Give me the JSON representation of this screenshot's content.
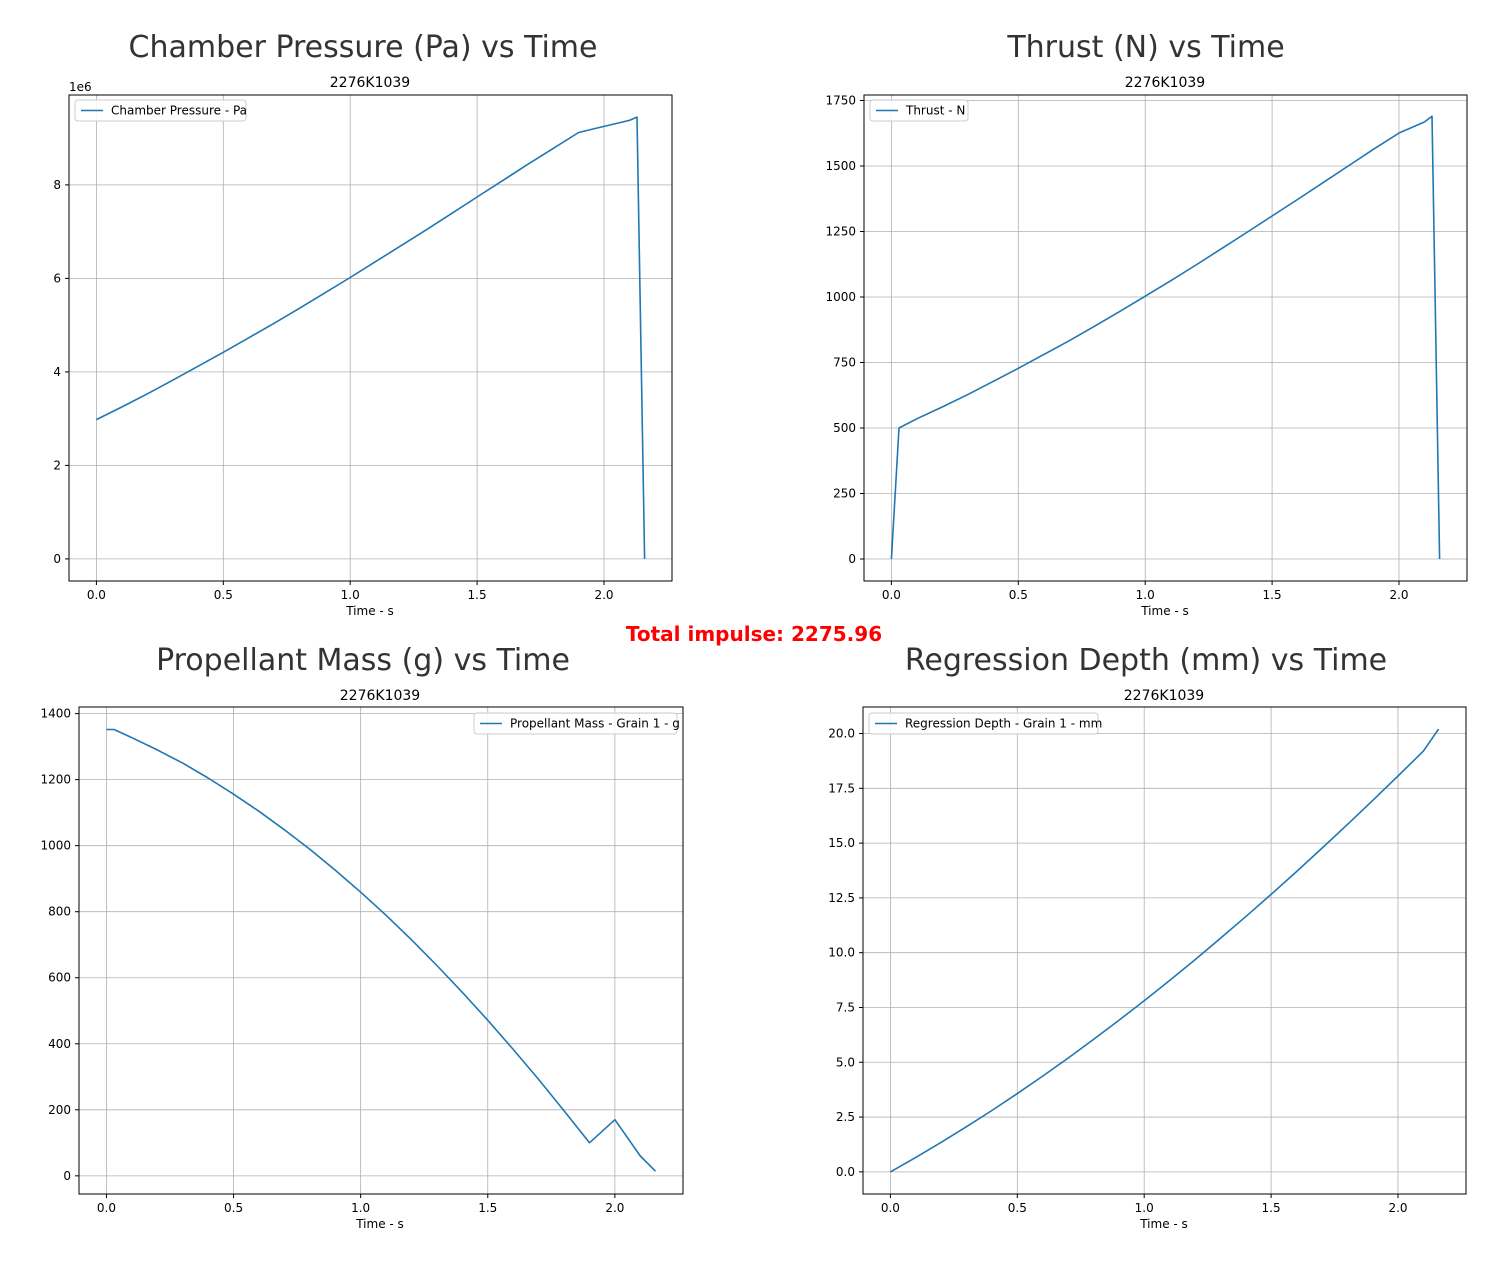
{
  "total_impulse_text": "Total impulse: 2275.96",
  "colors": {
    "line": "#1f77b4",
    "grid": "#b0b0b0",
    "title": "#333333",
    "impulse": "#ff0000"
  },
  "chart_data": [
    {
      "type": "line",
      "title": "Chamber Pressure (Pa) vs Time",
      "subtitle": "2276K1039",
      "xlabel": "Time - s",
      "ylabel": "",
      "xlim": [
        -0.108,
        2.268
      ],
      "ylim": [
        -472500,
        9922500
      ],
      "xticks": [
        0.0,
        0.5,
        1.0,
        1.5,
        2.0
      ],
      "xtick_labels": [
        "0.0",
        "0.5",
        "1.0",
        "1.5",
        "2.0"
      ],
      "yticks": [
        0,
        2000000,
        4000000,
        6000000,
        8000000
      ],
      "ytick_labels": [
        "0",
        "2",
        "4",
        "6",
        "8"
      ],
      "offset_text": "1e6",
      "grid": true,
      "legend_position": "upper left",
      "series": [
        {
          "name": "Chamber Pressure - Pa",
          "x": [
            0,
            0.1,
            0.2,
            0.3,
            0.4,
            0.5,
            0.6,
            0.7,
            0.8,
            0.9,
            1.0,
            1.1,
            1.2,
            1.3,
            1.4,
            1.5,
            1.6,
            1.7,
            1.8,
            1.9,
            2.0,
            2.1,
            2.13,
            2.16
          ],
          "y": [
            2980000,
            3250000,
            3530000,
            3820000,
            4120000,
            4420000,
            4730000,
            5040000,
            5360000,
            5690000,
            6020000,
            6360000,
            6700000,
            7040000,
            7390000,
            7740000,
            8090000,
            8440000,
            8780000,
            9120000,
            9250000,
            9380000,
            9450000,
            0
          ]
        }
      ]
    },
    {
      "type": "line",
      "title": "Thrust (N) vs Time",
      "subtitle": "2276K1039",
      "xlabel": "Time - s",
      "ylabel": "",
      "xlim": [
        -0.108,
        2.268
      ],
      "ylim": [
        -84,
        1771
      ],
      "xticks": [
        0.0,
        0.5,
        1.0,
        1.5,
        2.0
      ],
      "xtick_labels": [
        "0.0",
        "0.5",
        "1.0",
        "1.5",
        "2.0"
      ],
      "yticks": [
        0,
        250,
        500,
        750,
        1000,
        1250,
        1500,
        1750
      ],
      "ytick_labels": [
        "0",
        "250",
        "500",
        "750",
        "1000",
        "1250",
        "1500",
        "1750"
      ],
      "grid": true,
      "legend_position": "upper left",
      "series": [
        {
          "name": "Thrust - N",
          "x": [
            0,
            0.03,
            0.1,
            0.2,
            0.3,
            0.4,
            0.5,
            0.6,
            0.7,
            0.8,
            0.9,
            1.0,
            1.1,
            1.2,
            1.3,
            1.4,
            1.5,
            1.6,
            1.7,
            1.8,
            1.9,
            2.0,
            2.1,
            2.13,
            2.16
          ],
          "y": [
            0,
            500,
            535,
            580,
            627,
            677,
            728,
            780,
            833,
            888,
            945,
            1003,
            1062,
            1122,
            1184,
            1246,
            1309,
            1372,
            1436,
            1500,
            1564,
            1626,
            1668,
            1690,
            0
          ]
        }
      ]
    },
    {
      "type": "line",
      "title": "Propellant Mass (g) vs Time",
      "subtitle": "2276K1039",
      "xlabel": "Time - s",
      "ylabel": "",
      "xlim": [
        -0.108,
        2.268
      ],
      "ylim": [
        -55,
        1420
      ],
      "xticks": [
        0.0,
        0.5,
        1.0,
        1.5,
        2.0
      ],
      "xtick_labels": [
        "0.0",
        "0.5",
        "1.0",
        "1.5",
        "2.0"
      ],
      "yticks": [
        0,
        200,
        400,
        600,
        800,
        1000,
        1200,
        1400
      ],
      "ytick_labels": [
        "0",
        "200",
        "400",
        "600",
        "800",
        "1000",
        "1200",
        "1400"
      ],
      "grid": true,
      "legend_position": "upper right",
      "series": [
        {
          "name": "Propellant Mass - Grain 1 - g",
          "x": [
            0,
            0.03,
            0.1,
            0.2,
            0.3,
            0.4,
            0.5,
            0.6,
            0.7,
            0.8,
            0.9,
            1.0,
            1.1,
            1.2,
            1.3,
            1.4,
            1.5,
            1.6,
            1.7,
            1.8,
            1.9,
            2.0,
            2.1,
            2.16
          ],
          "y": [
            1352,
            1352,
            1327,
            1290,
            1250,
            1205,
            1156,
            1104,
            1048,
            989,
            926,
            859,
            789,
            715,
            637,
            556,
            471,
            383,
            292,
            197,
            100,
            170,
            60,
            14
          ]
        }
      ]
    },
    {
      "type": "line",
      "title": "Regression Depth (mm) vs Time",
      "subtitle": "2276K1039",
      "xlabel": "Time - s",
      "ylabel": "",
      "xlim": [
        -0.108,
        2.268
      ],
      "ylim": [
        -1.01,
        21.21
      ],
      "xticks": [
        0.0,
        0.5,
        1.0,
        1.5,
        2.0
      ],
      "xtick_labels": [
        "0.0",
        "0.5",
        "1.0",
        "1.5",
        "2.0"
      ],
      "yticks": [
        0.0,
        2.5,
        5.0,
        7.5,
        10.0,
        12.5,
        15.0,
        17.5,
        20.0
      ],
      "ytick_labels": [
        "0.0",
        "2.5",
        "5.0",
        "7.5",
        "10.0",
        "12.5",
        "15.0",
        "17.5",
        "20.0"
      ],
      "grid": true,
      "legend_position": "upper left",
      "series": [
        {
          "name": "Regression Depth - Grain 1 - mm",
          "x": [
            0,
            0.1,
            0.2,
            0.3,
            0.4,
            0.5,
            0.6,
            0.7,
            0.8,
            0.9,
            1.0,
            1.1,
            1.2,
            1.3,
            1.4,
            1.5,
            1.6,
            1.7,
            1.8,
            1.9,
            2.0,
            2.1,
            2.16
          ],
          "y": [
            0,
            0.66,
            1.35,
            2.06,
            2.8,
            3.57,
            4.37,
            5.19,
            6.04,
            6.91,
            7.81,
            8.73,
            9.68,
            10.65,
            11.64,
            12.66,
            13.7,
            14.76,
            15.84,
            16.94,
            18.06,
            19.2,
            20.2
          ]
        }
      ]
    }
  ]
}
